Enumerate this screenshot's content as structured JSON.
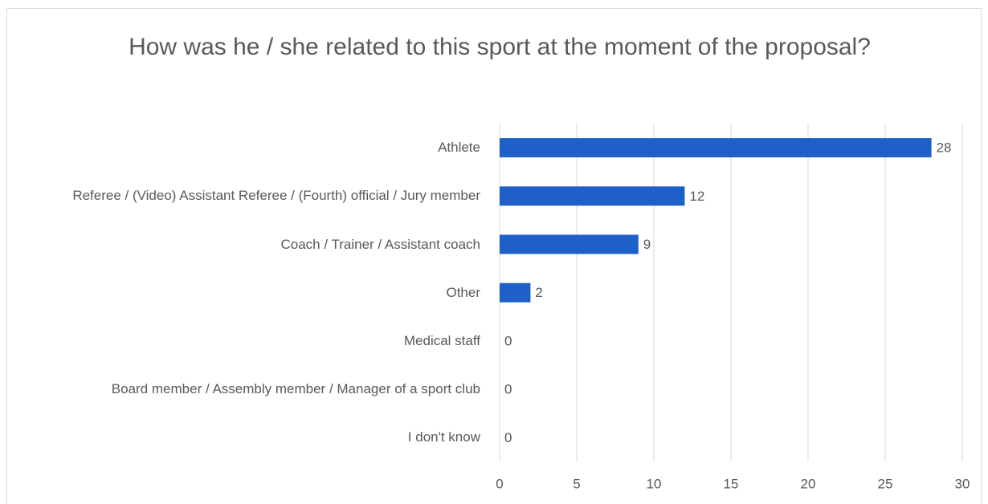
{
  "chart_data": {
    "type": "bar",
    "orientation": "horizontal",
    "title": "How was he / she related to this sport at the moment of the proposal?",
    "categories": [
      "Athlete",
      "Referee / (Video) Assistant Referee / (Fourth) official / Jury member",
      "Coach / Trainer / Assistant coach",
      "Other",
      "Medical staff",
      "Board member / Assembly member / Manager of a sport club",
      "I don't know"
    ],
    "values": [
      28,
      12,
      9,
      2,
      0,
      0,
      0
    ],
    "color": "#1f5fc8",
    "xlim": [
      0,
      30
    ],
    "xticks": [
      0,
      5,
      10,
      15,
      20,
      25,
      30
    ],
    "grid": true
  }
}
